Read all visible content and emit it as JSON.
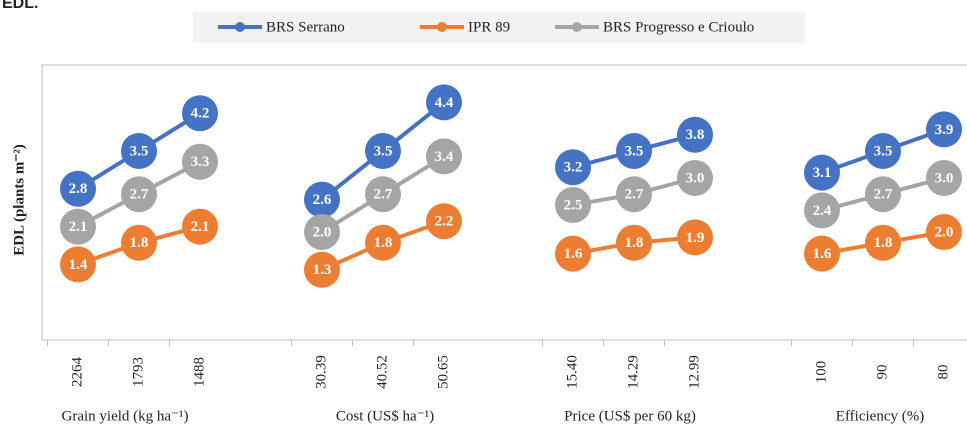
{
  "chart_data": {
    "type": "line",
    "title": "EDL.",
    "y_label": "EDL (plants m⁻²)",
    "groups": [
      "Grain yield (kg ha⁻¹)",
      "Cost (US$ ha⁻¹)",
      "Price (US$ per 60 kg)",
      "Efficiency (%)"
    ],
    "categories": [
      "2264",
      "1793",
      "1488",
      "30.39",
      "40.52",
      "50.65",
      "15.40",
      "14.29",
      "12.99",
      "100",
      "90",
      "80"
    ],
    "ylim": [
      0,
      5
    ],
    "series": [
      {
        "name": "BRS Serrano",
        "color": "#4472c4",
        "values": [
          2.8,
          3.5,
          4.2,
          2.6,
          3.5,
          4.4,
          3.2,
          3.5,
          3.8,
          3.1,
          3.5,
          3.9
        ],
        "value_labels": [
          "2.8",
          "3.5",
          "4.2",
          "2.6",
          "3.5",
          "4.4",
          "3.2",
          "3.5",
          "3.8",
          "3.1",
          "3.5",
          "3.9"
        ]
      },
      {
        "name": "IPR 89",
        "color": "#ed7d31",
        "values": [
          1.4,
          1.8,
          2.1,
          1.3,
          1.8,
          2.2,
          1.6,
          1.8,
          1.9,
          1.6,
          1.8,
          2.0
        ],
        "value_labels": [
          "1.4",
          "1.8",
          "2.1",
          "1.3",
          "1.8",
          "2.2",
          "1.6",
          "1.8",
          "1.9",
          "1.6",
          "1.8",
          "2.0"
        ]
      },
      {
        "name": "BRS Progresso e Crioulo",
        "color": "#a5a5a5",
        "values": [
          2.1,
          2.7,
          3.3,
          2.0,
          2.7,
          3.4,
          2.5,
          2.7,
          3.0,
          2.4,
          2.7,
          3.0
        ],
        "value_labels": [
          "2.1",
          "2.7",
          "3.3",
          "2.0",
          "2.7",
          "3.4",
          "2.5",
          "2.7",
          "3.0",
          "2.4",
          "2.7",
          "3.0"
        ]
      }
    ]
  }
}
